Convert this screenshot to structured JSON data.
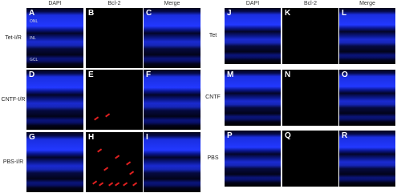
{
  "left": {
    "column_headers": [
      "DAPI",
      "Bcl-2",
      "Merge"
    ],
    "rows": [
      {
        "label": "Tet-I/R",
        "panels": [
          "A",
          "B",
          "C"
        ]
      },
      {
        "label": "CNTF-I/R",
        "panels": [
          "D",
          "E",
          "F"
        ]
      },
      {
        "label": "PBS-I/R",
        "panels": [
          "G",
          "H",
          "I"
        ]
      }
    ],
    "layer_labels": [
      "ONL",
      "INL",
      "GCL"
    ]
  },
  "right": {
    "column_headers": [
      "DAPI",
      "Bcl-2",
      "Merge"
    ],
    "rows": [
      {
        "label": "Tet",
        "panels": [
          "J",
          "K",
          "L"
        ]
      },
      {
        "label": "CNTF",
        "panels": [
          "M",
          "N",
          "O"
        ]
      },
      {
        "label": "PBS",
        "panels": [
          "P",
          "Q",
          "R"
        ]
      }
    ]
  }
}
